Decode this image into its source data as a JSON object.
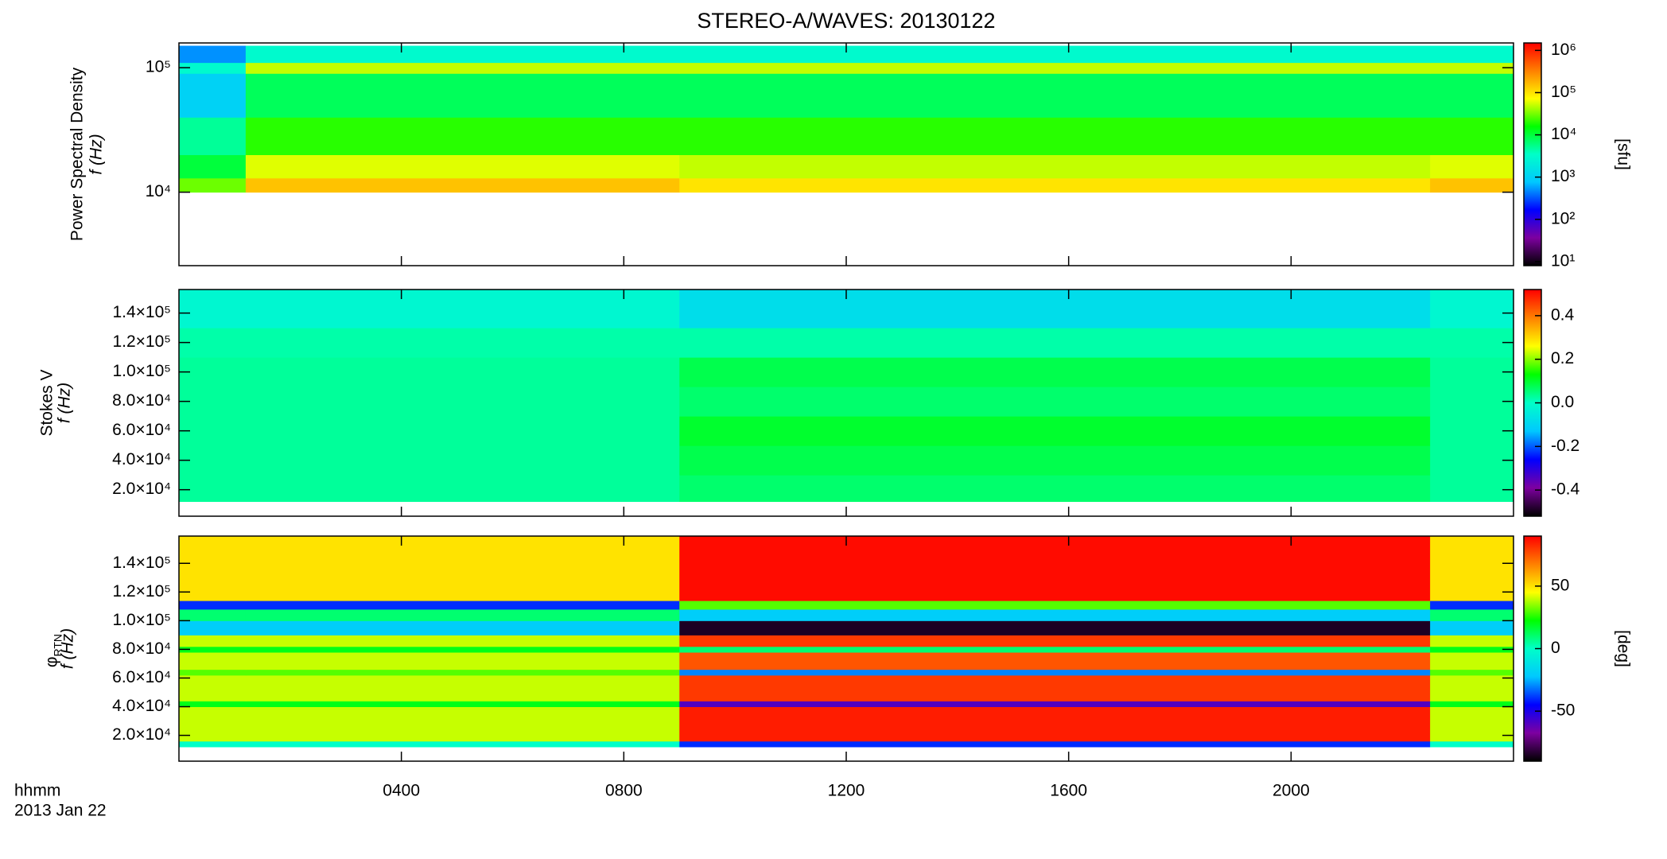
{
  "title": "STEREO-A/WAVES: 20130122",
  "time_label": "hhmm",
  "date_label": "2013 Jan 22",
  "colormap": [
    "#000000",
    "#7d00a0",
    "#0000ff",
    "#00c8ff",
    "#00ffc8",
    "#00ff00",
    "#ffff00",
    "#ff8000",
    "#ff0000"
  ],
  "chart_data": [
    {
      "type": "heatmap",
      "ylabel": "Power Spectral Density",
      "ylabel2": "f (Hz)",
      "colorbar_label": "[sfu]",
      "xlim": [
        0,
        24
      ],
      "ylim": [
        2570,
        158000
      ],
      "log_y": true,
      "yticks": [
        {
          "value": 10000,
          "label": "10⁴"
        },
        {
          "value": 100000,
          "label": "10⁵"
        }
      ],
      "clim": [
        8,
        1500000
      ],
      "log_c": true,
      "cticks": [
        {
          "value": 1000000,
          "label": "10⁶"
        },
        {
          "value": 100000,
          "label": "10⁵"
        },
        {
          "value": 10000,
          "label": "10⁴"
        },
        {
          "value": 1000,
          "label": "10³"
        },
        {
          "value": 100,
          "label": "10²"
        },
        {
          "value": 10,
          "label": "10¹"
        }
      ],
      "x_edges": [
        0,
        1.2,
        9,
        22.5,
        24
      ],
      "y_edges": [
        10000,
        13000,
        20000,
        40000,
        90000,
        110000,
        150000
      ],
      "z": [
        [
          30000,
          150000,
          100000,
          150000
        ],
        [
          10000,
          60000,
          50000,
          60000
        ],
        [
          5000,
          20000,
          20000,
          20000
        ],
        [
          1000,
          8000,
          8000,
          8000
        ],
        [
          3000,
          50000,
          50000,
          50000
        ],
        [
          500,
          3000,
          3000,
          3000
        ]
      ]
    },
    {
      "type": "heatmap",
      "ylabel": "Stokes V",
      "ylabel2": "f (Hz)",
      "xlim": [
        0,
        24
      ],
      "ylim": [
        2000,
        156000
      ],
      "log_y": false,
      "yticks": [
        {
          "value": 20000,
          "label": "2.0×10⁴"
        },
        {
          "value": 40000,
          "label": "4.0×10⁴"
        },
        {
          "value": 60000,
          "label": "6.0×10⁴"
        },
        {
          "value": 80000,
          "label": "8.0×10⁴"
        },
        {
          "value": 100000,
          "label": "1.0×10⁵"
        },
        {
          "value": 120000,
          "label": "1.2×10⁵"
        },
        {
          "value": 140000,
          "label": "1.4×10⁵"
        }
      ],
      "clim": [
        -0.52,
        0.52
      ],
      "log_c": false,
      "cticks": [
        0.4,
        0.2,
        {
          "value": 0,
          "label": "0.0"
        },
        -0.2,
        -0.4
      ],
      "x_edges": [
        0,
        1.2,
        9,
        22.5,
        24
      ],
      "y_edges": [
        12000,
        30000,
        50000,
        70000,
        90000,
        110000,
        130000,
        156000
      ],
      "z": [
        [
          0.03,
          0.03,
          0.06,
          0.03
        ],
        [
          0.03,
          0.03,
          0.08,
          0.03
        ],
        [
          0.03,
          0.03,
          0.1,
          0.03
        ],
        [
          0.03,
          0.03,
          0.06,
          0.03
        ],
        [
          0.03,
          0.03,
          0.08,
          0.03
        ],
        [
          0.02,
          0.02,
          0.02,
          0.02
        ],
        [
          -0.02,
          -0.02,
          -0.08,
          -0.02
        ]
      ]
    },
    {
      "type": "heatmap",
      "ylabel": "φ",
      "ylabel_sub": "RTN",
      "ylabel2": "f (Hz)",
      "colorbar_label": "[deg]",
      "xlim": [
        0,
        24
      ],
      "ylim": [
        2000,
        159000
      ],
      "log_y": false,
      "yticks": [
        {
          "value": 20000,
          "label": "2.0×10⁴"
        },
        {
          "value": 40000,
          "label": "4.0×10⁴"
        },
        {
          "value": 60000,
          "label": "6.0×10⁴"
        },
        {
          "value": 80000,
          "label": "8.0×10⁴"
        },
        {
          "value": 100000,
          "label": "1.0×10⁵"
        },
        {
          "value": 120000,
          "label": "1.2×10⁵"
        },
        {
          "value": 140000,
          "label": "1.4×10⁵"
        }
      ],
      "clim": [
        -90,
        90
      ],
      "log_c": false,
      "cticks": [
        50,
        0,
        -50
      ],
      "xticks": [
        {
          "value": 4,
          "label": "0400"
        },
        {
          "value": 8,
          "label": "0800"
        },
        {
          "value": 12,
          "label": "1200"
        },
        {
          "value": 16,
          "label": "1600"
        },
        {
          "value": 20,
          "label": "2000"
        }
      ],
      "x_edges": [
        0,
        1.2,
        9,
        22.5,
        24
      ],
      "y_edges": [
        12000,
        16000,
        40000,
        44000,
        62000,
        66000,
        78000,
        82000,
        90000,
        100000,
        108000,
        114000,
        159000
      ],
      "z": [
        [
          0,
          0,
          -40,
          0
        ],
        [
          40,
          40,
          85,
          40
        ],
        [
          20,
          20,
          -60,
          20
        ],
        [
          40,
          40,
          80,
          40
        ],
        [
          30,
          30,
          -30,
          30
        ],
        [
          40,
          40,
          75,
          40
        ],
        [
          20,
          20,
          10,
          20
        ],
        [
          40,
          40,
          80,
          40
        ],
        [
          -20,
          -20,
          -85,
          -20
        ],
        [
          10,
          10,
          -20,
          10
        ],
        [
          -40,
          -40,
          30,
          -40
        ],
        [
          50,
          50,
          88,
          50
        ]
      ]
    }
  ]
}
